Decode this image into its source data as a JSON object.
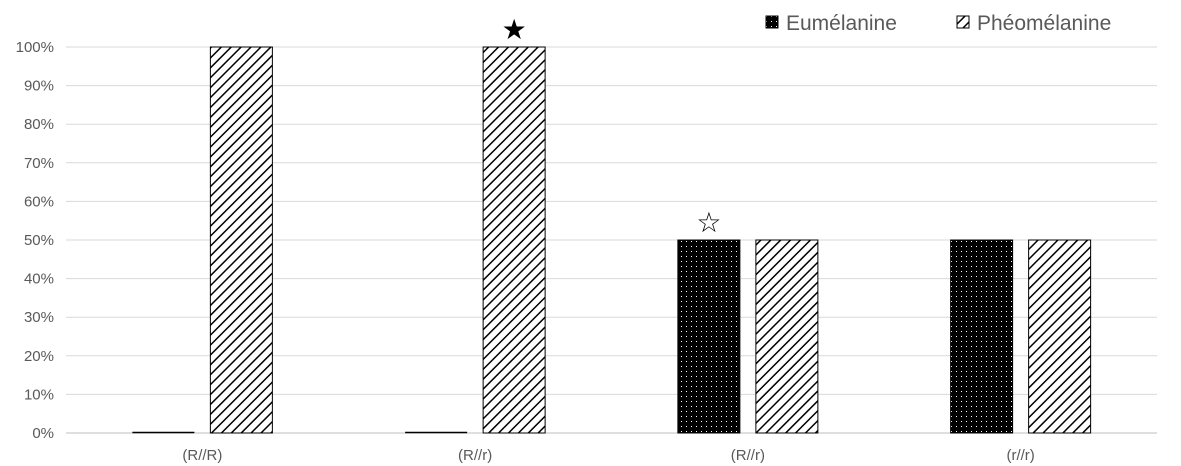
{
  "chart_data": {
    "type": "bar",
    "categories": [
      "(R//R)",
      "(R//r)",
      "(R//r)",
      "(r//r)"
    ],
    "series": [
      {
        "name": "Eumélanine",
        "values": [
          0,
          0,
          50,
          50
        ],
        "pattern": "dots-on-black"
      },
      {
        "name": "Phéomélanine",
        "values": [
          100,
          100,
          50,
          50
        ],
        "pattern": "diagonal-hatch"
      }
    ],
    "y_ticks": [
      "0%",
      "10%",
      "20%",
      "30%",
      "40%",
      "50%",
      "60%",
      "70%",
      "80%",
      "90%",
      "100%"
    ],
    "ylim": [
      0,
      100
    ],
    "grid": true,
    "legend_position": "top-right",
    "annotations": [
      {
        "symbol": "★",
        "style": "filled-star",
        "category_index": 1,
        "series_index": 1
      },
      {
        "symbol": "☆",
        "style": "outline-star",
        "category_index": 2,
        "series_index": 0
      }
    ],
    "colors": {
      "axis": "#bfbfbf",
      "grid": "#d9d9d9",
      "text": "#595959",
      "bar_fill": "#000000"
    }
  }
}
